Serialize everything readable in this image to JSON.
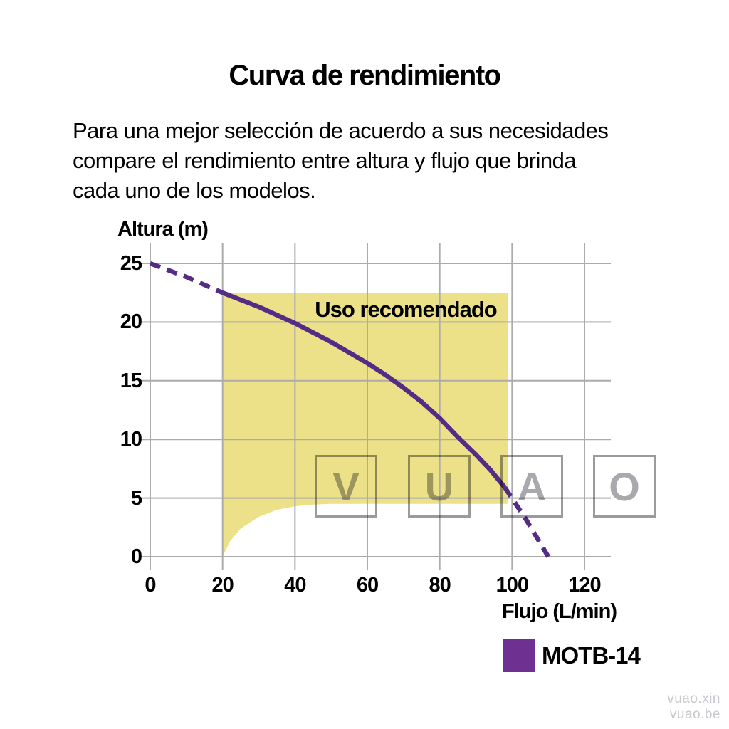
{
  "title": "Curva de rendimiento",
  "description_lines": [
    "Para una mejor selección de acuerdo a sus necesidades",
    "compare el rendimiento entre altura y flujo que brinda",
    "cada uno de los modelos."
  ],
  "chart_data": {
    "type": "line",
    "xlabel": "Flujo (L/min)",
    "ylabel": "Altura (m)",
    "x_ticks": [
      0,
      20,
      40,
      60,
      80,
      100,
      120
    ],
    "y_ticks": [
      0,
      5,
      10,
      15,
      20,
      25
    ],
    "xlim": [
      0,
      127
    ],
    "ylim": [
      0,
      26.7
    ],
    "grid": true,
    "grid_color": "#ababab",
    "region_label": "Uso recomendado",
    "region_color": "#ece189",
    "recommended_region_polygon": [
      [
        20,
        22.5
      ],
      [
        98.8,
        22.5
      ],
      [
        98.8,
        4.5
      ],
      [
        50,
        4.5
      ],
      [
        45,
        4.45
      ],
      [
        40,
        4.3
      ],
      [
        35,
        4.0
      ],
      [
        30,
        3.4
      ],
      [
        25,
        2.4
      ],
      [
        22,
        1.3
      ],
      [
        20,
        0
      ]
    ],
    "series": [
      {
        "name": "MOTB-14",
        "color": "#542b85",
        "dashed_head": [
          [
            0,
            25
          ],
          [
            10,
            23.85
          ],
          [
            20,
            22.5
          ]
        ],
        "solid": [
          [
            20,
            22.5
          ],
          [
            25,
            21.9
          ],
          [
            30,
            21.3
          ],
          [
            35,
            20.6
          ],
          [
            40,
            19.9
          ],
          [
            45,
            19.1
          ],
          [
            50,
            18.3
          ],
          [
            55,
            17.4
          ],
          [
            60,
            16.5
          ],
          [
            65,
            15.5
          ],
          [
            70,
            14.4
          ],
          [
            75,
            13.2
          ],
          [
            80,
            11.8
          ],
          [
            85,
            10.2
          ],
          [
            90,
            8.7
          ],
          [
            94,
            7.4
          ],
          [
            98,
            5.9
          ]
        ],
        "dashed_tail": [
          [
            98,
            5.9
          ],
          [
            104,
            3.1
          ],
          [
            110,
            0
          ]
        ]
      }
    ],
    "legend": {
      "label": "MOTB-14",
      "color": "#6e3192",
      "position": "bottom-right"
    }
  },
  "watermark": {
    "letters": [
      "V",
      "U",
      "A",
      "O"
    ],
    "lines": [
      "vuao.xin",
      "vuao.be"
    ]
  }
}
